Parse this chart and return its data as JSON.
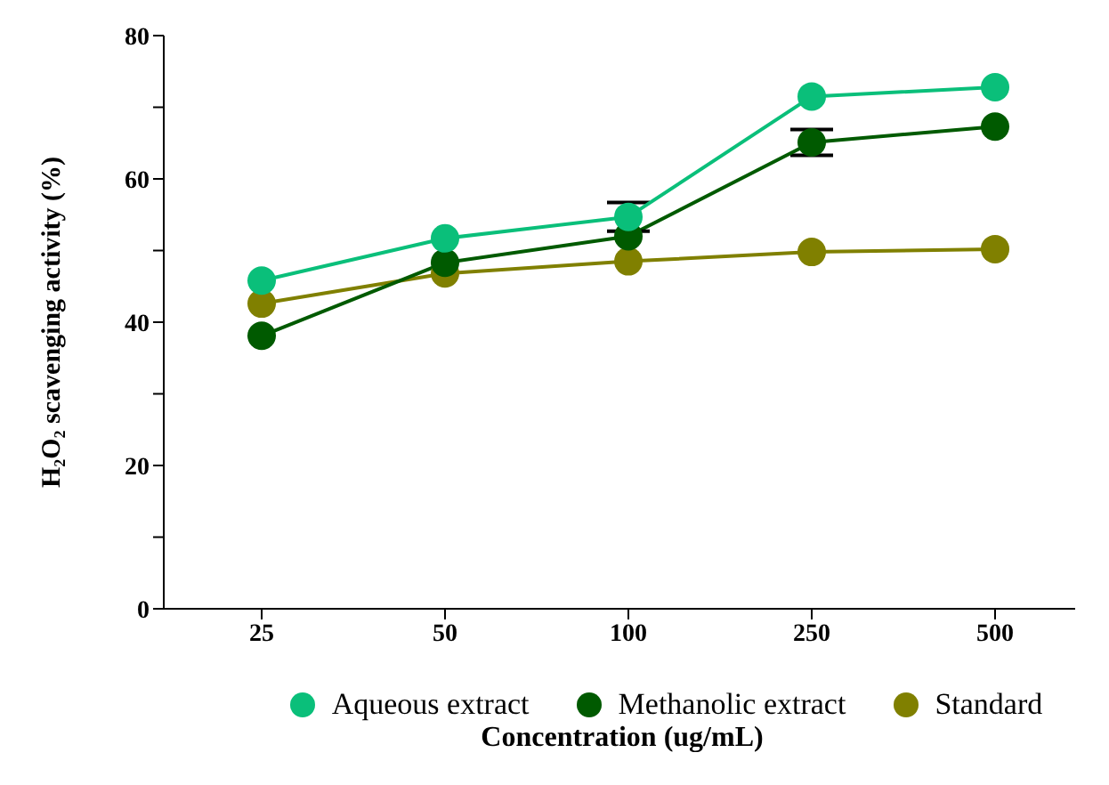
{
  "chart_data": {
    "type": "line",
    "xlabel": "Concentration (ug/mL)",
    "ylabel": "H₂O₂ scavenging activity (%)",
    "categories": [
      "25",
      "50",
      "100",
      "250",
      "500"
    ],
    "series": [
      {
        "name": "Aqueous extract",
        "color": "#0abf7a",
        "values": [
          45.8,
          51.7,
          54.7,
          71.5,
          72.8
        ],
        "errors": [
          null,
          null,
          2,
          null,
          null
        ]
      },
      {
        "name": "Methanolic extract",
        "color": "#005a00",
        "values": [
          38.1,
          48.3,
          52,
          65.1,
          67.3
        ],
        "errors": [
          null,
          null,
          null,
          1.8,
          null
        ]
      },
      {
        "name": "Standard",
        "color": "#808000",
        "values": [
          42.6,
          46.8,
          48.5,
          49.8,
          50.2
        ]
      }
    ],
    "ylim": [
      0,
      80
    ],
    "yticks": [
      0,
      {
        "value": 10,
        "label": null
      },
      20,
      {
        "value": 30,
        "label": null
      },
      40,
      {
        "value": 50,
        "label": null
      },
      60,
      {
        "value": 70,
        "label": null
      },
      80
    ],
    "grid": false,
    "legend": "bottom",
    "marker": "circle",
    "line_style": "solid"
  }
}
